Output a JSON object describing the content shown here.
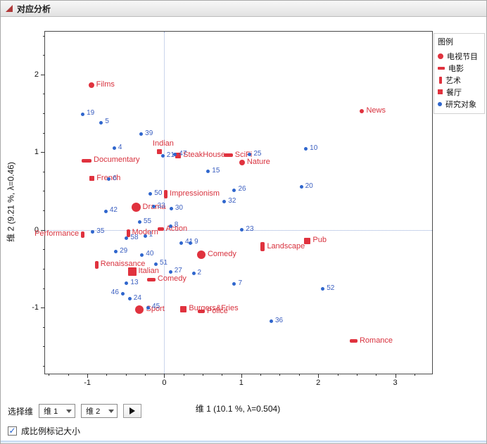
{
  "window": {
    "title": "对应分析"
  },
  "legend": {
    "title": "图例",
    "items": [
      {
        "label": "电视节目",
        "marker": "circle"
      },
      {
        "label": "电影",
        "marker": "hbar"
      },
      {
        "label": "艺术",
        "marker": "vbar"
      },
      {
        "label": "餐厅",
        "marker": "square"
      },
      {
        "label": "研究对象",
        "marker": "dot"
      }
    ]
  },
  "controls": {
    "select_dim_label": "选择维",
    "dim1": "维 1",
    "dim2": "维 2",
    "checkbox_label": "成比例标记大小",
    "checkbox_checked": true
  },
  "chart_data": {
    "type": "scatter",
    "xlabel": "维 1  (10.1 %, λ=0.504)",
    "ylabel": "维 2  (9.21 %, λ=0.46)",
    "xlim": [
      -1.55,
      3.48
    ],
    "ylim": [
      -1.85,
      2.55
    ],
    "xticks": [
      -1,
      0,
      1,
      2,
      3
    ],
    "yticks": [
      -1,
      0,
      1,
      2
    ],
    "minor_step": 0.25,
    "grid": false,
    "reference_lines": {
      "x": 0,
      "y": 0
    },
    "colors": {
      "category": "#e0323e",
      "subject": "#2f66cd",
      "refline": "#96abd8"
    },
    "series": [
      {
        "name": "电视节目",
        "marker": "circle",
        "points": [
          {
            "label": "Films",
            "x": -0.95,
            "y": 1.86,
            "size": 8
          },
          {
            "label": "News",
            "x": 2.57,
            "y": 1.53,
            "size": 6
          },
          {
            "label": "Nature",
            "x": 1.01,
            "y": 0.87,
            "size": 8
          },
          {
            "label": "Drama",
            "x": -0.37,
            "y": 0.29,
            "size": 13
          },
          {
            "label": "Comedy",
            "x": 0.48,
            "y": -0.32,
            "size": 12
          },
          {
            "label": "Sport",
            "x": -0.32,
            "y": -1.03,
            "size": 12
          }
        ]
      },
      {
        "name": "电影",
        "marker": "hbar",
        "points": [
          {
            "label": "Documentary",
            "x": -1.01,
            "y": 0.89,
            "w": 14,
            "h": 5
          },
          {
            "label": "SciFi",
            "x": 0.83,
            "y": 0.96,
            "w": 13,
            "h": 5
          },
          {
            "label": "Action",
            "x": -0.05,
            "y": 0.01,
            "w": 9,
            "h": 5
          },
          {
            "label": "Comedy",
            "x": -0.17,
            "y": -0.64,
            "w": 12,
            "h": 5
          },
          {
            "label": "Police",
            "x": 0.48,
            "y": -1.05,
            "w": 10,
            "h": 5
          },
          {
            "label": "Romance",
            "x": 2.46,
            "y": -1.43,
            "w": 11,
            "h": 5
          }
        ]
      },
      {
        "name": "艺术",
        "marker": "vbar",
        "points": [
          {
            "label": "Impressionism",
            "x": 0.02,
            "y": 0.46,
            "w": 5,
            "h": 12
          },
          {
            "label": "Modern",
            "x": -0.47,
            "y": -0.04,
            "w": 5,
            "h": 11
          },
          {
            "label": "Performance",
            "x": -1.06,
            "y": -0.06,
            "w": 5,
            "h": 9,
            "side": "left"
          },
          {
            "label": "Renaissance",
            "x": -0.88,
            "y": -0.45,
            "w": 5,
            "h": 11
          },
          {
            "label": "Landscape",
            "x": 1.28,
            "y": -0.22,
            "w": 6,
            "h": 13
          }
        ]
      },
      {
        "name": "餐厅",
        "marker": "square",
        "points": [
          {
            "label": "Indian",
            "x": -0.06,
            "y": 1.01,
            "size": 7,
            "labelpos": "above"
          },
          {
            "label": "SteakHouse",
            "x": 0.18,
            "y": 0.96,
            "size": 8
          },
          {
            "label": "French",
            "x": -0.94,
            "y": 0.66,
            "size": 7
          },
          {
            "label": "Italian",
            "x": -0.42,
            "y": -0.54,
            "size": 12
          },
          {
            "label": "Pub",
            "x": 1.86,
            "y": -0.14,
            "size": 9
          },
          {
            "label": "Burgers&Fries",
            "x": 0.25,
            "y": -1.02,
            "size": 9
          }
        ]
      },
      {
        "name": "研究对象",
        "marker": "dot",
        "points": [
          {
            "label": "19",
            "x": -1.06,
            "y": 1.49
          },
          {
            "label": "5",
            "x": -0.82,
            "y": 1.38
          },
          {
            "label": "39",
            "x": -0.3,
            "y": 1.23
          },
          {
            "label": "4",
            "x": -0.65,
            "y": 1.05
          },
          {
            "label": "21",
            "x": -0.02,
            "y": 0.95
          },
          {
            "label": "47",
            "x": 0.14,
            "y": 0.97
          },
          {
            "label": "25",
            "x": 1.11,
            "y": 0.97
          },
          {
            "label": "10",
            "x": 1.84,
            "y": 1.04
          },
          {
            "label": "15",
            "x": 0.57,
            "y": 0.75
          },
          {
            "label": "6",
            "x": -0.72,
            "y": 0.65
          },
          {
            "label": "26",
            "x": 0.91,
            "y": 0.51
          },
          {
            "label": "20",
            "x": 1.78,
            "y": 0.55
          },
          {
            "label": "50",
            "x": -0.18,
            "y": 0.46
          },
          {
            "label": "32",
            "x": 0.78,
            "y": 0.36
          },
          {
            "label": "42",
            "x": -0.76,
            "y": 0.24
          },
          {
            "label": "33",
            "x": -0.14,
            "y": 0.3
          },
          {
            "label": "30",
            "x": 0.09,
            "y": 0.27
          },
          {
            "label": "55",
            "x": -0.32,
            "y": 0.1
          },
          {
            "label": "8",
            "x": 0.08,
            "y": 0.05
          },
          {
            "label": "23",
            "x": 1.01,
            "y": 0.0
          },
          {
            "label": "35",
            "x": -0.93,
            "y": -0.03
          },
          {
            "label": "58",
            "x": -0.49,
            "y": -0.11
          },
          {
            "label": "1",
            "x": -0.25,
            "y": -0.08
          },
          {
            "label": "29",
            "x": -0.63,
            "y": -0.28
          },
          {
            "label": "40",
            "x": -0.29,
            "y": -0.32
          },
          {
            "label": "41",
            "x": 0.22,
            "y": -0.17
          },
          {
            "label": "9",
            "x": 0.34,
            "y": -0.17
          },
          {
            "label": "51",
            "x": -0.11,
            "y": -0.44
          },
          {
            "label": "13",
            "x": -0.49,
            "y": -0.69
          },
          {
            "label": "27",
            "x": 0.08,
            "y": -0.54
          },
          {
            "label": "2",
            "x": 0.38,
            "y": -0.56
          },
          {
            "label": "7",
            "x": 0.91,
            "y": -0.7
          },
          {
            "label": "52",
            "x": 2.06,
            "y": -0.76
          },
          {
            "label": "46",
            "x": -0.54,
            "y": -0.82,
            "side": "left"
          },
          {
            "label": "24",
            "x": -0.45,
            "y": -0.89
          },
          {
            "label": "45",
            "x": -0.21,
            "y": -1.0
          },
          {
            "label": "36",
            "x": 1.39,
            "y": -1.18
          }
        ]
      }
    ]
  }
}
